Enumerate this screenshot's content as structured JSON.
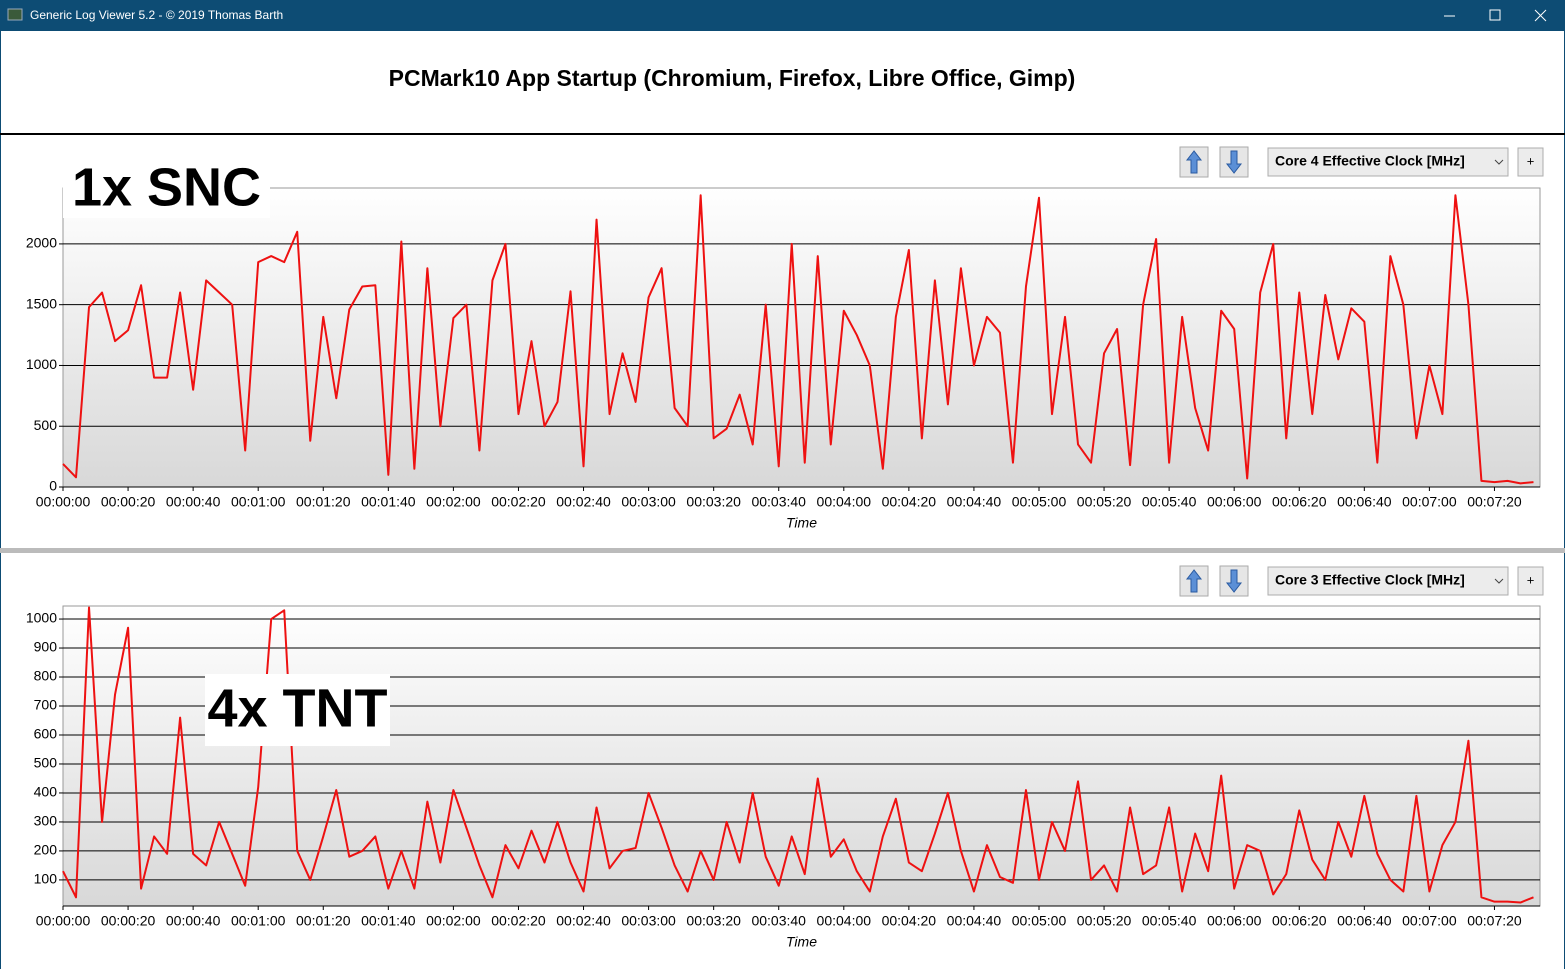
{
  "window": {
    "title": "Generic Log Viewer 5.2 - © 2019 Thomas Barth"
  },
  "header": {
    "title": "PCMark10 App Startup (Chromium, Firefox, Libre Office, Gimp)"
  },
  "chart_data": [
    {
      "type": "line",
      "annotation": "1x SNC",
      "x_label": "Time",
      "add_button": "+",
      "x": [
        0,
        4,
        8,
        12,
        16,
        20,
        24,
        28,
        32,
        36,
        40,
        44,
        48,
        52,
        56,
        60,
        64,
        68,
        72,
        76,
        80,
        84,
        88,
        92,
        96,
        100,
        104,
        108,
        112,
        116,
        120,
        124,
        128,
        132,
        136,
        140,
        144,
        148,
        152,
        156,
        160,
        164,
        168,
        172,
        176,
        180,
        184,
        188,
        192,
        196,
        200,
        204,
        208,
        212,
        216,
        220,
        224,
        228,
        232,
        236,
        240,
        244,
        248,
        252,
        256,
        260,
        264,
        268,
        272,
        276,
        280,
        284,
        288,
        292,
        296,
        300,
        304,
        308,
        312,
        316,
        320,
        324,
        328,
        332,
        336,
        340,
        344,
        348,
        352,
        356,
        360,
        364,
        368,
        372,
        376,
        380,
        384,
        388,
        392,
        396,
        400,
        404,
        408,
        412,
        416,
        420,
        424,
        428,
        432,
        436,
        440,
        444,
        448,
        452
      ],
      "series": [
        {
          "name": "Core 4 Effective Clock [MHz]",
          "color": "#ee1111",
          "values": [
            190,
            80,
            1480,
            1600,
            1200,
            1290,
            1660,
            900,
            900,
            1600,
            800,
            1700,
            1600,
            1500,
            300,
            1850,
            1900,
            1850,
            2100,
            380,
            1400,
            730,
            1460,
            1650,
            1660,
            100,
            2020,
            150,
            1800,
            500,
            1390,
            1500,
            300,
            1700,
            2000,
            600,
            1200,
            500,
            700,
            1610,
            170,
            2200,
            600,
            1100,
            700,
            1560,
            1800,
            650,
            500,
            2400,
            400,
            480,
            760,
            350,
            1500,
            170,
            2000,
            200,
            1900,
            350,
            1450,
            1250,
            1000,
            150,
            1400,
            1950,
            400,
            1700,
            680,
            1800,
            1000,
            1400,
            1270,
            200,
            1650,
            2380,
            600,
            1400,
            350,
            200,
            1100,
            1300,
            180,
            1500,
            2040,
            200,
            1400,
            650,
            300,
            1450,
            1300,
            70,
            1600,
            2000,
            400,
            1600,
            600,
            1580,
            1050,
            1470,
            1360,
            200,
            1900,
            1500,
            400,
            1000,
            600,
            2400,
            1500,
            50,
            40,
            50,
            30,
            40
          ]
        }
      ],
      "xlim": [
        0,
        454
      ],
      "xticks": [
        {
          "value": 0,
          "label": "00:00:00"
        },
        {
          "value": 20,
          "label": "00:00:20"
        },
        {
          "value": 40,
          "label": "00:00:40"
        },
        {
          "value": 60,
          "label": "00:01:00"
        },
        {
          "value": 80,
          "label": "00:01:20"
        },
        {
          "value": 100,
          "label": "00:01:40"
        },
        {
          "value": 120,
          "label": "00:02:00"
        },
        {
          "value": 140,
          "label": "00:02:20"
        },
        {
          "value": 160,
          "label": "00:02:40"
        },
        {
          "value": 180,
          "label": "00:03:00"
        },
        {
          "value": 200,
          "label": "00:03:20"
        },
        {
          "value": 220,
          "label": "00:03:40"
        },
        {
          "value": 240,
          "label": "00:04:00"
        },
        {
          "value": 260,
          "label": "00:04:20"
        },
        {
          "value": 280,
          "label": "00:04:40"
        },
        {
          "value": 300,
          "label": "00:05:00"
        },
        {
          "value": 320,
          "label": "00:05:20"
        },
        {
          "value": 340,
          "label": "00:05:40"
        },
        {
          "value": 360,
          "label": "00:06:00"
        },
        {
          "value": 380,
          "label": "00:06:20"
        },
        {
          "value": 400,
          "label": "00:06:40"
        },
        {
          "value": 420,
          "label": "00:07:00"
        },
        {
          "value": 440,
          "label": "00:07:20"
        }
      ],
      "ylim": [
        0,
        2460
      ],
      "yticks": [
        0,
        500,
        1000,
        1500,
        2000
      ],
      "grid": true
    },
    {
      "type": "line",
      "annotation": "4x TNT",
      "x_label": "Time",
      "add_button": "+",
      "x": [
        0,
        4,
        8,
        12,
        16,
        20,
        24,
        28,
        32,
        36,
        40,
        44,
        48,
        52,
        56,
        60,
        64,
        68,
        72,
        76,
        80,
        84,
        88,
        92,
        96,
        100,
        104,
        108,
        112,
        116,
        120,
        124,
        128,
        132,
        136,
        140,
        144,
        148,
        152,
        156,
        160,
        164,
        168,
        172,
        176,
        180,
        184,
        188,
        192,
        196,
        200,
        204,
        208,
        212,
        216,
        220,
        224,
        228,
        232,
        236,
        240,
        244,
        248,
        252,
        256,
        260,
        264,
        268,
        272,
        276,
        280,
        284,
        288,
        292,
        296,
        300,
        304,
        308,
        312,
        316,
        320,
        324,
        328,
        332,
        336,
        340,
        344,
        348,
        352,
        356,
        360,
        364,
        368,
        372,
        376,
        380,
        384,
        388,
        392,
        396,
        400,
        404,
        408,
        412,
        416,
        420,
        424,
        428,
        432,
        436,
        440,
        444,
        448,
        452
      ],
      "series": [
        {
          "name": "Core 3 Effective Clock [MHz]",
          "color": "#ee1111",
          "values": [
            130,
            40,
            1040,
            300,
            740,
            970,
            70,
            250,
            190,
            660,
            190,
            150,
            300,
            190,
            80,
            420,
            1000,
            1030,
            200,
            100,
            250,
            410,
            180,
            200,
            250,
            70,
            200,
            70,
            370,
            160,
            410,
            280,
            150,
            40,
            220,
            140,
            270,
            160,
            300,
            160,
            60,
            350,
            140,
            200,
            210,
            400,
            280,
            150,
            60,
            200,
            100,
            300,
            160,
            400,
            180,
            80,
            250,
            120,
            450,
            180,
            240,
            130,
            60,
            250,
            380,
            160,
            130,
            260,
            400,
            200,
            60,
            220,
            110,
            90,
            410,
            100,
            300,
            200,
            440,
            100,
            150,
            60,
            350,
            120,
            150,
            350,
            60,
            260,
            130,
            460,
            70,
            220,
            200,
            50,
            120,
            340,
            170,
            100,
            300,
            180,
            390,
            190,
            100,
            60,
            390,
            60,
            220,
            300,
            580,
            40,
            25,
            25,
            22,
            40
          ]
        }
      ],
      "xlim": [
        0,
        454
      ],
      "xticks": [
        {
          "value": 0,
          "label": "00:00:00"
        },
        {
          "value": 20,
          "label": "00:00:20"
        },
        {
          "value": 40,
          "label": "00:00:40"
        },
        {
          "value": 60,
          "label": "00:01:00"
        },
        {
          "value": 80,
          "label": "00:01:20"
        },
        {
          "value": 100,
          "label": "00:01:40"
        },
        {
          "value": 120,
          "label": "00:02:00"
        },
        {
          "value": 140,
          "label": "00:02:20"
        },
        {
          "value": 160,
          "label": "00:02:40"
        },
        {
          "value": 180,
          "label": "00:03:00"
        },
        {
          "value": 200,
          "label": "00:03:20"
        },
        {
          "value": 220,
          "label": "00:03:40"
        },
        {
          "value": 240,
          "label": "00:04:00"
        },
        {
          "value": 260,
          "label": "00:04:20"
        },
        {
          "value": 280,
          "label": "00:04:40"
        },
        {
          "value": 300,
          "label": "00:05:00"
        },
        {
          "value": 320,
          "label": "00:05:20"
        },
        {
          "value": 340,
          "label": "00:05:40"
        },
        {
          "value": 360,
          "label": "00:06:00"
        },
        {
          "value": 380,
          "label": "00:06:20"
        },
        {
          "value": 400,
          "label": "00:06:40"
        },
        {
          "value": 420,
          "label": "00:07:00"
        },
        {
          "value": 440,
          "label": "00:07:20"
        }
      ],
      "ylim": [
        10,
        1045
      ],
      "yticks": [
        100,
        200,
        300,
        400,
        500,
        600,
        700,
        800,
        900,
        1000
      ],
      "grid": true
    }
  ]
}
